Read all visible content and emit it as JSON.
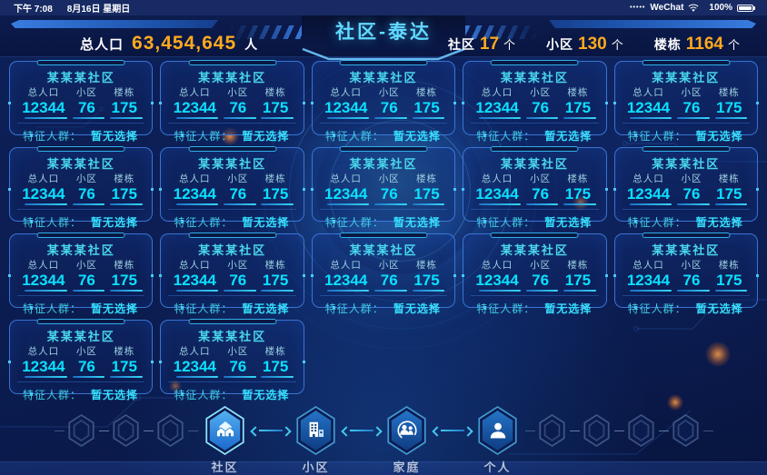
{
  "status_bar": {
    "time": "下午 7:08",
    "date": "8月16日 星期日",
    "signal_dots": "•••••",
    "carrier": "WeChat",
    "battery_percent": "100%"
  },
  "header": {
    "title": "社区-泰达",
    "left_stat": {
      "label": "总人口",
      "value": "63,454,645",
      "unit": "人"
    },
    "right_stats": [
      {
        "label": "社区",
        "value": "17",
        "unit": "个"
      },
      {
        "label": "小区",
        "value": "130",
        "unit": "个"
      },
      {
        "label": "楼栋",
        "value": "1164",
        "unit": "个"
      }
    ]
  },
  "cards": {
    "count": 17,
    "card": {
      "title": "某某某社区",
      "stats": [
        {
          "label": "总人口",
          "value": "12344"
        },
        {
          "label": "小区",
          "value": "76"
        },
        {
          "label": "楼栋",
          "value": "175"
        }
      ],
      "feature_label": "特征人群：",
      "feature_value": "暂无选择"
    }
  },
  "nav": {
    "dim_left_count": 3,
    "dim_right_count": 4,
    "items": [
      {
        "label": "社区",
        "icon": "community-houses-icon",
        "active": true
      },
      {
        "label": "小区",
        "icon": "building-icon",
        "active": false
      },
      {
        "label": "家庭",
        "icon": "family-icon",
        "active": false
      },
      {
        "label": "个人",
        "icon": "person-icon",
        "active": false
      }
    ]
  },
  "colors": {
    "accent_cyan": "#35d8f5",
    "value_cyan": "#0ae0ff",
    "accent_orange": "#ffaa1e",
    "card_border": "#4282e6",
    "background_navy": "#0b1c50"
  }
}
